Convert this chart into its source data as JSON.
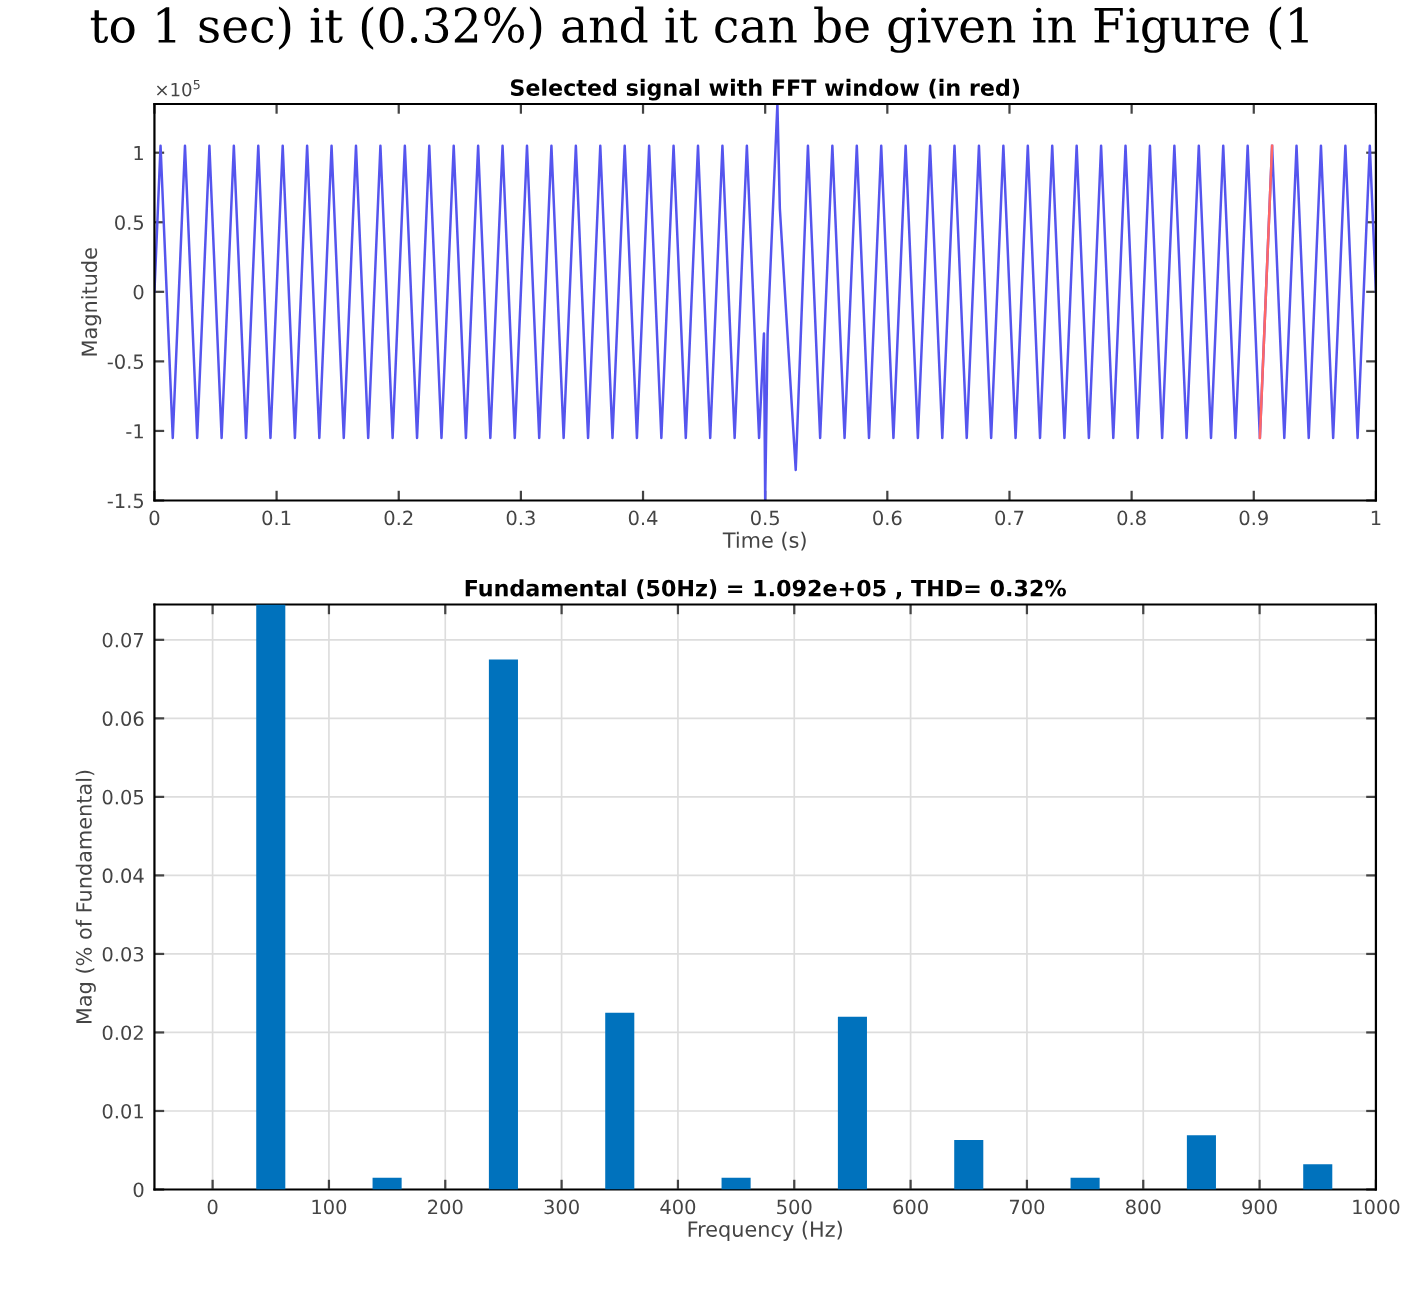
{
  "chart_data": [
    {
      "type": "line",
      "title": "Selected signal with FFT window (in red)",
      "xlabel": "Time (s)",
      "ylabel": "Magnitude",
      "annotations": [
        "to 1 sec) it (0.32%) and it can be given in Figure (1",
        "×10$^{5}$"
      ],
      "series": [
        {
          "color": "#5555ee",
          "x": [
            0,
            0.005,
            0.015,
            0.025,
            0.035,
            0.045,
            0.055,
            0.065,
            0.075,
            0.085,
            0.095,
            0.105,
            0.115,
            0.125,
            0.135,
            0.145,
            0.155,
            0.165,
            0.175,
            0.185,
            0.195,
            0.205,
            0.215,
            0.225,
            0.235,
            0.245,
            0.255,
            0.265,
            0.275,
            0.285,
            0.295,
            0.305,
            0.315,
            0.325,
            0.335,
            0.345,
            0.355,
            0.365,
            0.375,
            0.385,
            0.395,
            0.405,
            0.415,
            0.425,
            0.435,
            0.445,
            0.455,
            0.465,
            0.475,
            0.485,
            0.495,
            0.499,
            0.5,
            0.502,
            0.51,
            0.512,
            0.525,
            0.535,
            0.545,
            0.555,
            0.565,
            0.575,
            0.585,
            0.595,
            0.605,
            0.615,
            0.625,
            0.635,
            0.645,
            0.655,
            0.665,
            0.675,
            0.685,
            0.695,
            0.705,
            0.715,
            0.725,
            0.735,
            0.745,
            0.755,
            0.765,
            0.775,
            0.785,
            0.795,
            0.805,
            0.815,
            0.825,
            0.835,
            0.845,
            0.855,
            0.865,
            0.875,
            0.885,
            0.895,
            0.905,
            0.915,
            0.925,
            0.935,
            0.945,
            0.955,
            0.965,
            0.975,
            0.985,
            0.995,
            1.0
          ],
          "values": [
            0,
            1.05,
            -1.05,
            1.05,
            -1.05,
            1.05,
            -1.05,
            1.05,
            -1.05,
            1.05,
            -1.05,
            1.05,
            -1.05,
            1.05,
            -1.05,
            1.05,
            -1.05,
            1.05,
            -1.05,
            1.05,
            -1.05,
            1.05,
            -1.05,
            1.05,
            -1.05,
            1.05,
            -1.05,
            1.05,
            -1.05,
            1.05,
            -1.05,
            1.05,
            -1.05,
            1.05,
            -1.05,
            1.05,
            -1.05,
            1.05,
            -1.05,
            1.05,
            -1.05,
            1.05,
            -1.05,
            1.05,
            -1.05,
            1.05,
            -1.05,
            1.05,
            -1.05,
            1.05,
            -1.05,
            -0.3,
            -1.5,
            -0.3,
            1.35,
            0.6,
            -1.28,
            1.05,
            -1.05,
            1.05,
            -1.05,
            1.05,
            -1.05,
            1.05,
            -1.05,
            1.05,
            -1.05,
            1.05,
            -1.05,
            1.05,
            -1.05,
            1.05,
            -1.05,
            1.05,
            -1.05,
            1.05,
            -1.05,
            1.05,
            -1.05,
            1.05,
            -1.05,
            1.05,
            -1.05,
            1.05,
            -1.05,
            1.05,
            -1.05,
            1.05,
            -1.05,
            1.05,
            -1.05,
            1.05,
            -1.05,
            1.05,
            -1.05,
            1.05,
            -1.05,
            1.05,
            -1.05,
            1.05,
            -1.05,
            1.05,
            -1.05,
            1.05,
            0
          ]
        },
        {
          "color": "#ff6666",
          "x": [
            0.905,
            0.915
          ],
          "values": [
            -1.05,
            1.05
          ]
        }
      ],
      "xlim": [
        0,
        1
      ],
      "xticks": [
        0,
        0.1,
        0.2,
        0.3,
        0.4,
        0.5,
        0.6,
        0.7,
        0.8,
        0.9,
        1
      ],
      "ylim": [
        -1.5,
        1.35
      ],
      "yticks": [
        -1.5,
        -1,
        -0.5,
        0,
        0.5,
        1
      ],
      "grid": false
    },
    {
      "type": "bar",
      "title": "Fundamental (50Hz) = 1.092e+05 , THD= 0.32%",
      "xlabel": "Frequency (Hz)",
      "ylabel": "Mag (% of Fundamental)",
      "x": [
        50,
        150,
        250,
        350,
        450,
        550,
        650,
        750,
        850,
        950
      ],
      "values": [
        0.0745,
        0.0015,
        0.0675,
        0.0225,
        0.0015,
        0.022,
        0.0063,
        0.0015,
        0.0069,
        0.0032
      ],
      "color": "#0072bd",
      "xlim": [
        -50,
        1000
      ],
      "xticks": [
        0,
        100,
        200,
        300,
        400,
        500,
        600,
        700,
        800,
        900,
        1000
      ],
      "ylim": [
        0,
        0.0745
      ],
      "yticks": [
        0,
        0.01,
        0.02,
        0.03,
        0.04,
        0.05,
        0.06,
        0.07
      ],
      "grid": true
    }
  ]
}
